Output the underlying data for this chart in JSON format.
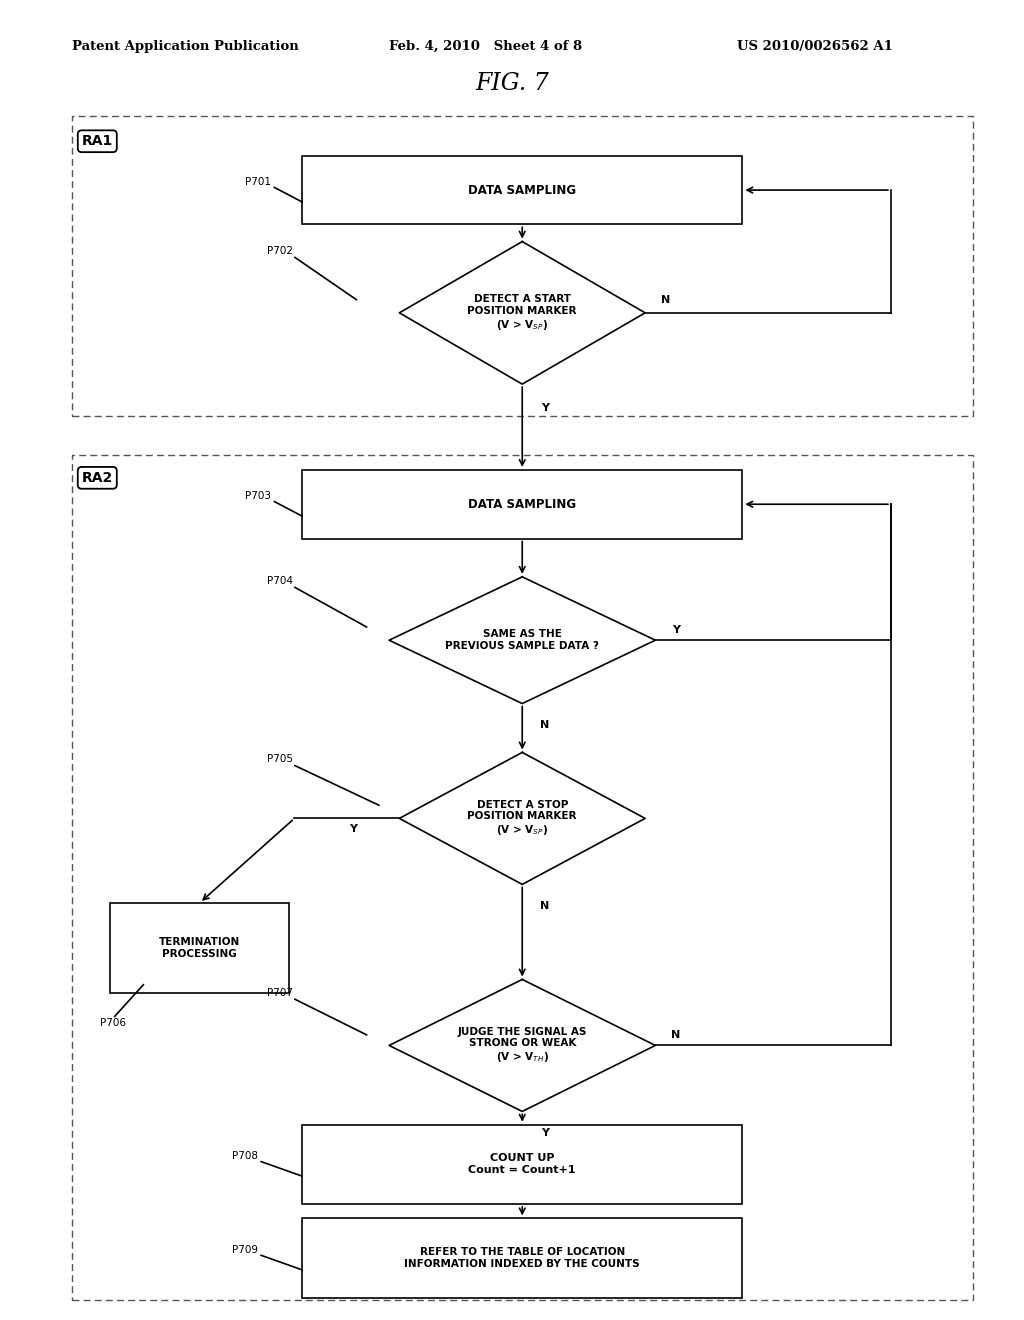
{
  "title": "FIG. 7",
  "header_left": "Patent Application Publication",
  "header_mid": "Feb. 4, 2010   Sheet 4 of 8",
  "header_right": "US 2010/0026562 A1",
  "bg_color": "#ffffff",
  "ra1_label": "RA1",
  "ra2_label": "RA2",
  "p701_label": "DATA SAMPLING",
  "p702_label": "DETECT A START\nPOSITION MARKER\n(V > V$_{SP}$)",
  "p703_label": "DATA SAMPLING",
  "p704_label": "SAME AS THE\nPREVIOUS SAMPLE DATA ?",
  "p705_label": "DETECT A STOP\nPOSITION MARKER\n(V > V$_{SP}$)",
  "p706_label": "TERMINATION\nPROCESSING",
  "p707_label": "JUDGE THE SIGNAL AS\nSTRONG OR WEAK\n(V > V$_{TH}$)",
  "p708_label": "COUNT UP\nCount = Count+1",
  "p709_label": "REFER TO THE TABLE OF LOCATION\nINFORMATION INDEXED BY THE COUNTS"
}
